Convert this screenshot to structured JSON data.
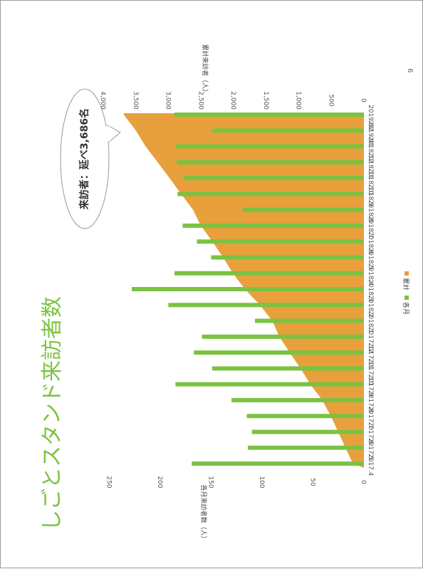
{
  "page": {
    "number": "6"
  },
  "callout": {
    "text": "来訪者：延べ3,686名"
  },
  "chart_data": {
    "type": "bar",
    "title": "しごとスタンド来訪者数",
    "categories": [
      "2017.4",
      "2017.5",
      "2017.6",
      "2017.7",
      "2017.8",
      "2017.9",
      "2017.10",
      "2017.11",
      "2017.12",
      "2018.1",
      "2018.2",
      "2018.3",
      "2018.4",
      "2018.5",
      "2018.6",
      "2018.7",
      "2018.8",
      "2018.9",
      "2018.10",
      "2018.11",
      "2018.12",
      "2019.01",
      "2019.02"
    ],
    "series": [
      {
        "name": "累計",
        "kind": "area",
        "axis": "right",
        "color": "#e8a03c",
        "values": [
          169,
          283,
          393,
          508,
          638,
          823,
          972,
          1139,
          1298,
          1405,
          1597,
          1825,
          2011,
          2161,
          2325,
          2503,
          2622,
          2805,
          2982,
          3166,
          3351,
          3500,
          3686
        ]
      },
      {
        "name": "各月",
        "kind": "bar",
        "axis": "left",
        "color": "#7cc242",
        "values": [
          169,
          114,
          110,
          115,
          130,
          185,
          149,
          167,
          159,
          107,
          192,
          228,
          186,
          150,
          164,
          178,
          119,
          183,
          177,
          184,
          185,
          149,
          186
        ]
      }
    ],
    "left_axis": {
      "label": "各月来訪者数（人）",
      "range": [
        0,
        250
      ],
      "ticks": [
        "0",
        "50",
        "100",
        "150",
        "200",
        "250"
      ]
    },
    "right_axis": {
      "label": "累計来訪者（人）",
      "range": [
        0,
        4000
      ],
      "ticks": [
        "0",
        "500",
        "1,000",
        "1,500",
        "2,000",
        "2,500",
        "3,000",
        "3,500",
        "4,000"
      ]
    },
    "legend": {
      "position": "bottom",
      "items": [
        "累計",
        "各月"
      ]
    },
    "grid": false
  }
}
